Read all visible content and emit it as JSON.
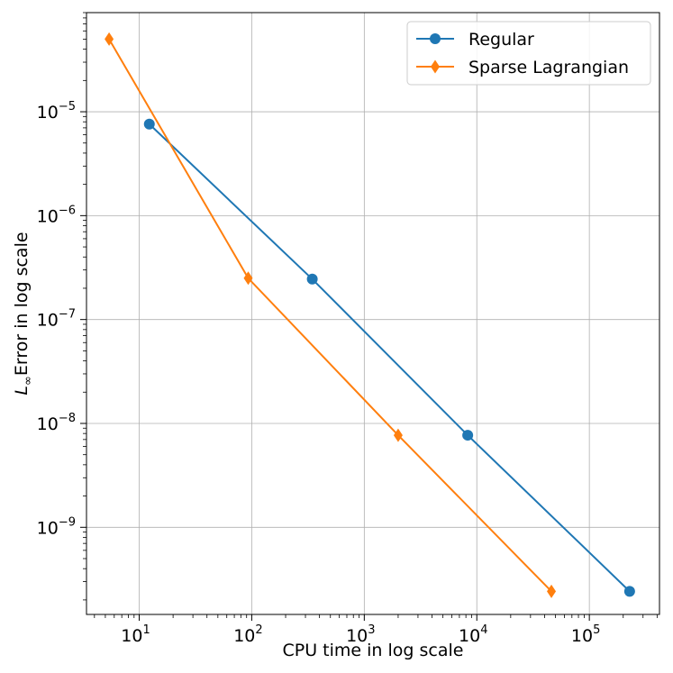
{
  "chart_data": {
    "type": "line",
    "x_scale": "log",
    "y_scale": "log",
    "xlabel": "CPU time in log scale",
    "ylabel_main": "Error in log scale",
    "ylabel_symbol": "L",
    "ylabel_subscript": "∞",
    "xlim": [
      3.4,
      420000
    ],
    "ylim": [
      1.45e-10,
      9e-05
    ],
    "grid": true,
    "legend": "top-right",
    "x_ticks": [
      {
        "value": 10,
        "base": "10",
        "exp": "1"
      },
      {
        "value": 100,
        "base": "10",
        "exp": "2"
      },
      {
        "value": 1000,
        "base": "10",
        "exp": "3"
      },
      {
        "value": 10000,
        "base": "10",
        "exp": "4"
      },
      {
        "value": 100000,
        "base": "10",
        "exp": "5"
      }
    ],
    "y_ticks": [
      {
        "value": 1e-09,
        "base": "10",
        "exp": "−9"
      },
      {
        "value": 1e-08,
        "base": "10",
        "exp": "−8"
      },
      {
        "value": 1e-07,
        "base": "10",
        "exp": "−7"
      },
      {
        "value": 1e-06,
        "base": "10",
        "exp": "−6"
      },
      {
        "value": 1e-05,
        "base": "10",
        "exp": "−5"
      }
    ],
    "series": [
      {
        "name": "Regular",
        "color": "#1f77b4",
        "marker": "circle",
        "points": [
          {
            "x": 12.3,
            "y": 7.6e-06
          },
          {
            "x": 345,
            "y": 2.45e-07
          },
          {
            "x": 8300,
            "y": 7.7e-09
          },
          {
            "x": 228000,
            "y": 2.42e-10
          }
        ]
      },
      {
        "name": "Sparse Lagrangian",
        "color": "#ff7f0e",
        "marker": "diamond",
        "points": [
          {
            "x": 5.4,
            "y": 5e-05
          },
          {
            "x": 93,
            "y": 2.5e-07
          },
          {
            "x": 2000,
            "y": 7.7e-09
          },
          {
            "x": 46000,
            "y": 2.42e-10
          }
        ]
      }
    ]
  }
}
